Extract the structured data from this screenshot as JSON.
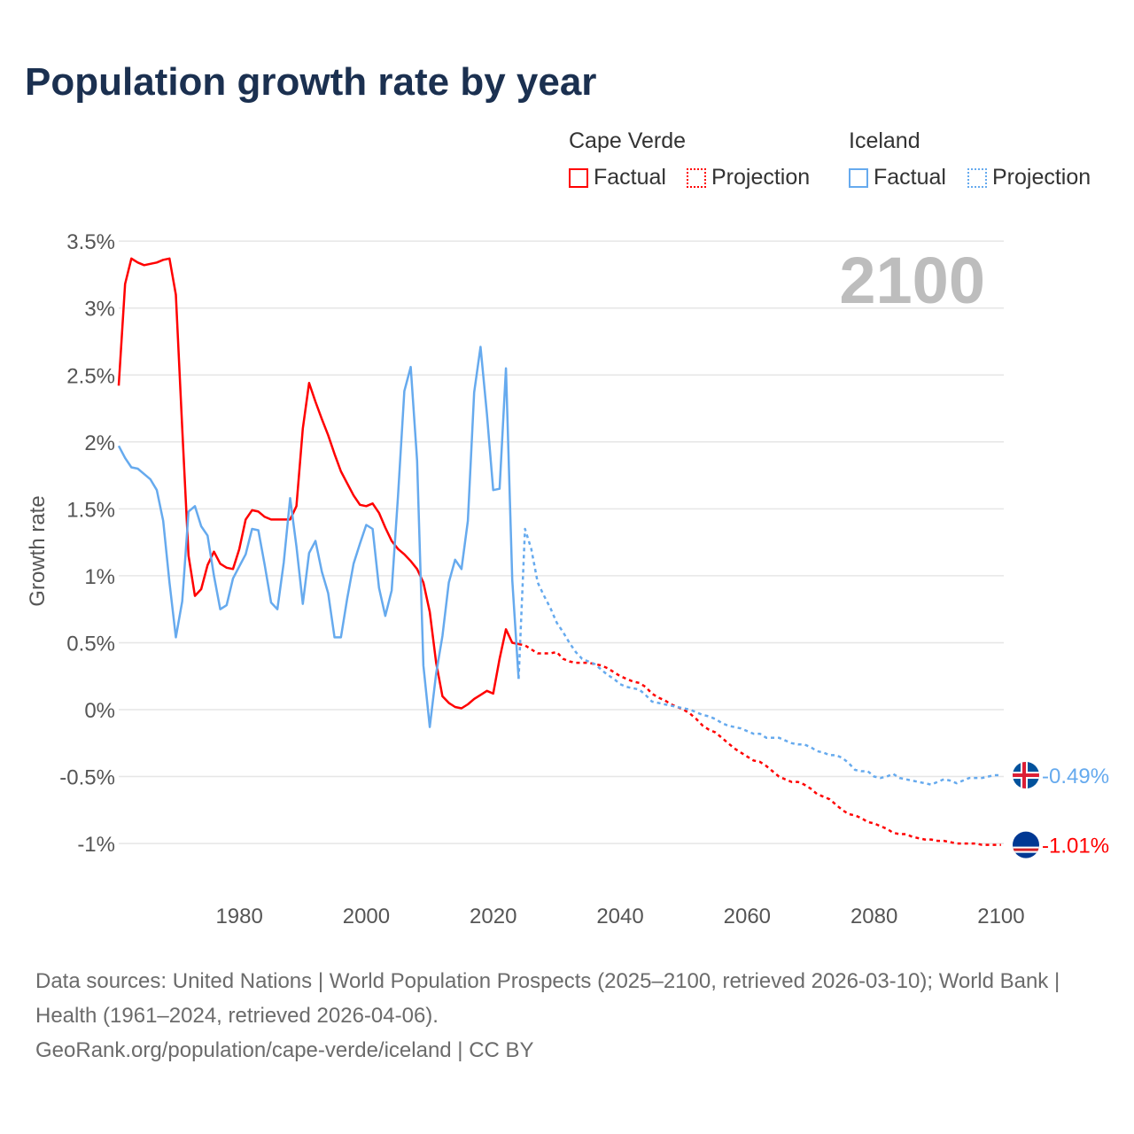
{
  "title": "Population growth rate by year",
  "legend": {
    "groups": [
      {
        "name": "Cape Verde",
        "factual": "Factual",
        "projection": "Projection",
        "color": "#ff0000"
      },
      {
        "name": "Iceland",
        "factual": "Factual",
        "projection": "Projection",
        "color": "#66aaee"
      }
    ]
  },
  "year_label": "2100",
  "end_labels": {
    "cape_verde": "-1.01%",
    "iceland": "-0.49%"
  },
  "sources": {
    "line1": "Data sources: United Nations | World Population Prospects (2025–2100, retrieved 2026-03-10); World Bank | Health (1961–2024, retrieved 2026-04-06).",
    "line2": "GeoRank.org/population/cape-verde/iceland | CC BY"
  },
  "chart_data": {
    "type": "line",
    "title": "Population growth rate by year",
    "xlabel": "",
    "ylabel": "Growth rate",
    "xlim": [
      1961,
      2100
    ],
    "ylim": [
      -1.0,
      3.5
    ],
    "grid": true,
    "legend_position": "top-right",
    "x_ticks": [
      "1980",
      "2000",
      "2020",
      "2040",
      "2060",
      "2080",
      "2100"
    ],
    "y_ticks": [
      {
        "v": 3.5,
        "label": "3.5%"
      },
      {
        "v": 3,
        "label": "3%"
      },
      {
        "v": 2.5,
        "label": "2.5%"
      },
      {
        "v": 2,
        "label": "2%"
      },
      {
        "v": 1.5,
        "label": "1.5%"
      },
      {
        "v": 1,
        "label": "1%"
      },
      {
        "v": 0.5,
        "label": "0.5%"
      },
      {
        "v": 0,
        "label": "0%"
      },
      {
        "v": -0.5,
        "label": "-0.5%"
      },
      {
        "v": -1,
        "label": "-1%"
      }
    ],
    "series": [
      {
        "name": "Cape Verde Factual",
        "country": "cape-verde",
        "style": "solid",
        "color": "#ff0000",
        "start_year": 1961,
        "values": [
          2.42,
          3.18,
          3.37,
          3.34,
          3.32,
          3.33,
          3.34,
          3.36,
          3.37,
          3.1,
          2.1,
          1.15,
          0.85,
          0.9,
          1.08,
          1.18,
          1.09,
          1.06,
          1.05,
          1.2,
          1.42,
          1.49,
          1.48,
          1.44,
          1.42,
          1.42,
          1.42,
          1.42,
          1.52,
          2.1,
          2.44,
          2.3,
          2.17,
          2.05,
          1.91,
          1.78,
          1.69,
          1.6,
          1.53,
          1.52,
          1.54,
          1.47,
          1.36,
          1.26,
          1.2,
          1.16,
          1.11,
          1.05,
          0.95,
          0.73,
          0.35,
          0.1,
          0.05,
          0.02,
          0.01,
          0.04,
          0.08,
          0.11,
          0.14,
          0.12,
          0.38,
          0.6,
          0.5,
          0.49
        ]
      },
      {
        "name": "Cape Verde Projection",
        "country": "cape-verde",
        "style": "dotted",
        "color": "#ff0000",
        "start_year": 2024,
        "values": [
          0.49,
          0.48,
          0.45,
          0.42,
          0.42,
          0.42,
          0.43,
          0.38,
          0.36,
          0.35,
          0.35,
          0.35,
          0.34,
          0.33,
          0.31,
          0.28,
          0.25,
          0.23,
          0.21,
          0.2,
          0.17,
          0.12,
          0.09,
          0.07,
          0.04,
          0.02,
          0.0,
          -0.03,
          -0.07,
          -0.12,
          -0.15,
          -0.17,
          -0.21,
          -0.25,
          -0.29,
          -0.32,
          -0.35,
          -0.38,
          -0.39,
          -0.42,
          -0.46,
          -0.5,
          -0.52,
          -0.54,
          -0.54,
          -0.56,
          -0.59,
          -0.63,
          -0.65,
          -0.67,
          -0.71,
          -0.75,
          -0.78,
          -0.79,
          -0.81,
          -0.84,
          -0.85,
          -0.87,
          -0.89,
          -0.92,
          -0.93,
          -0.93,
          -0.95,
          -0.96,
          -0.97,
          -0.97,
          -0.98,
          -0.98,
          -0.99,
          -1.0,
          -1.0,
          -1.0,
          -1.0,
          -1.01,
          -1.01,
          -1.01,
          -1.01
        ]
      },
      {
        "name": "Iceland Factual",
        "country": "iceland",
        "style": "solid",
        "color": "#66aaee",
        "start_year": 1961,
        "values": [
          1.97,
          1.88,
          1.81,
          1.8,
          1.76,
          1.72,
          1.64,
          1.41,
          0.95,
          0.54,
          0.81,
          1.48,
          1.52,
          1.37,
          1.3,
          1.0,
          0.75,
          0.78,
          0.98,
          1.07,
          1.16,
          1.35,
          1.34,
          1.08,
          0.8,
          0.75,
          1.1,
          1.58,
          1.22,
          0.79,
          1.17,
          1.26,
          1.03,
          0.87,
          0.54,
          0.54,
          0.83,
          1.09,
          1.24,
          1.38,
          1.35,
          0.91,
          0.7,
          0.89,
          1.6,
          2.38,
          2.56,
          1.86,
          0.33,
          -0.13,
          0.27,
          0.55,
          0.95,
          1.12,
          1.05,
          1.41,
          2.37,
          2.71,
          2.21,
          1.64,
          1.65,
          2.55,
          0.97,
          0.23
        ]
      },
      {
        "name": "Iceland Projection",
        "country": "iceland",
        "style": "dotted",
        "color": "#66aaee",
        "start_year": 2024,
        "values": [
          0.23,
          1.35,
          1.2,
          0.95,
          0.85,
          0.76,
          0.65,
          0.58,
          0.5,
          0.43,
          0.38,
          0.36,
          0.34,
          0.3,
          0.26,
          0.23,
          0.19,
          0.17,
          0.16,
          0.15,
          0.11,
          0.06,
          0.05,
          0.04,
          0.03,
          0.02,
          0.01,
          0.0,
          -0.02,
          -0.04,
          -0.05,
          -0.07,
          -0.1,
          -0.12,
          -0.13,
          -0.14,
          -0.16,
          -0.18,
          -0.18,
          -0.21,
          -0.21,
          -0.21,
          -0.23,
          -0.25,
          -0.26,
          -0.26,
          -0.28,
          -0.31,
          -0.32,
          -0.34,
          -0.34,
          -0.36,
          -0.4,
          -0.45,
          -0.46,
          -0.46,
          -0.5,
          -0.51,
          -0.5,
          -0.48,
          -0.51,
          -0.52,
          -0.53,
          -0.54,
          -0.55,
          -0.56,
          -0.54,
          -0.52,
          -0.53,
          -0.55,
          -0.53,
          -0.51,
          -0.51,
          -0.51,
          -0.5,
          -0.49,
          -0.49
        ]
      }
    ]
  }
}
